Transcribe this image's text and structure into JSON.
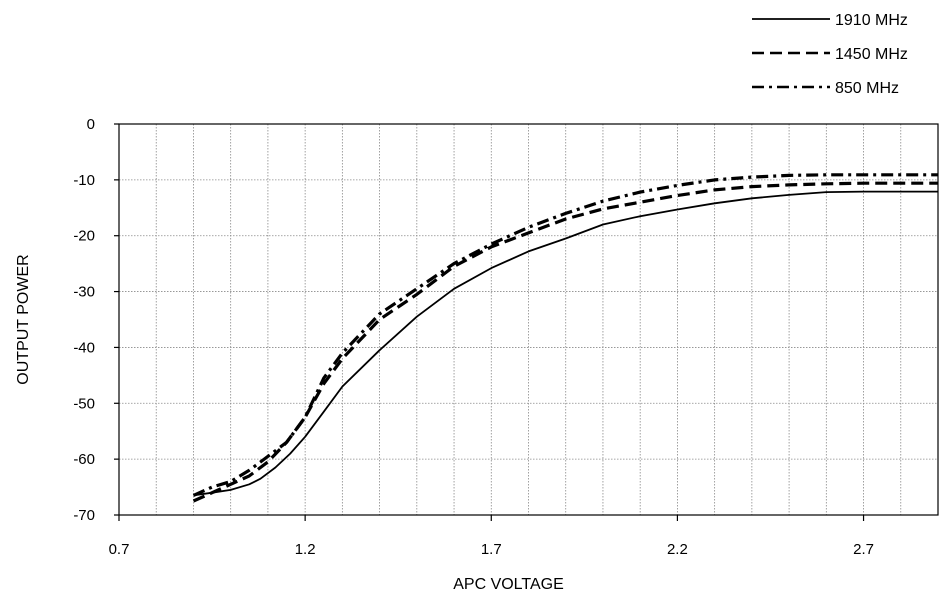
{
  "chart_data": {
    "type": "line",
    "xlabel": "APC VOLTAGE",
    "ylabel": "OUTPUT POWER",
    "xlim": [
      0.7,
      2.9
    ],
    "ylim": [
      -70,
      0
    ],
    "x_ticks": [
      0.7,
      1.2,
      1.7,
      2.2,
      2.7
    ],
    "x_tick_labels": [
      "0.7",
      "1.2",
      "1.7",
      "2.2",
      "2.7"
    ],
    "y_ticks": [
      0,
      -10,
      -20,
      -30,
      -40,
      -50,
      -60,
      -70
    ],
    "y_tick_labels": [
      "0",
      "-10",
      "-20",
      "-30",
      "-40",
      "-50",
      "-60",
      "-70"
    ],
    "grid": true,
    "legend_position": "top-right",
    "series": [
      {
        "name": "1910 MHz",
        "style": "solid",
        "x": [
          0.9,
          0.95,
          1.0,
          1.05,
          1.08,
          1.12,
          1.16,
          1.2,
          1.25,
          1.3,
          1.4,
          1.5,
          1.6,
          1.7,
          1.8,
          1.9,
          2.0,
          2.1,
          2.2,
          2.3,
          2.4,
          2.5,
          2.6,
          2.7,
          2.8,
          2.9
        ],
        "y": [
          -66.5,
          -66,
          -65.5,
          -64.5,
          -63.5,
          -61.5,
          -59,
          -56,
          -51.5,
          -47,
          -40.5,
          -34.5,
          -29.5,
          -25.8,
          -22.8,
          -20.5,
          -18.0,
          -16.5,
          -15.3,
          -14.2,
          -13.3,
          -12.7,
          -12.2,
          -12.1,
          -12.1,
          -12.1
        ]
      },
      {
        "name": "1450 MHz",
        "style": "dashed",
        "x": [
          0.9,
          0.95,
          1.0,
          1.05,
          1.1,
          1.15,
          1.2,
          1.25,
          1.3,
          1.4,
          1.5,
          1.6,
          1.7,
          1.8,
          1.9,
          2.0,
          2.1,
          2.2,
          2.3,
          2.4,
          2.5,
          2.6,
          2.7,
          2.8,
          2.9
        ],
        "y": [
          -67.5,
          -66,
          -64.5,
          -63,
          -60.5,
          -57,
          -52.5,
          -46.5,
          -42,
          -35,
          -30.5,
          -25.5,
          -22,
          -19.5,
          -17,
          -15.2,
          -14,
          -12.8,
          -11.8,
          -11.2,
          -10.9,
          -10.7,
          -10.6,
          -10.6,
          -10.6
        ]
      },
      {
        "name": "850 MHz",
        "style": "dash-dot",
        "x": [
          0.9,
          0.95,
          1.0,
          1.05,
          1.1,
          1.15,
          1.2,
          1.25,
          1.3,
          1.4,
          1.5,
          1.6,
          1.7,
          1.8,
          1.9,
          2.0,
          2.1,
          2.2,
          2.3,
          2.4,
          2.5,
          2.6,
          2.7,
          2.8,
          2.9
        ],
        "y": [
          -66.5,
          -65,
          -64,
          -62,
          -59.5,
          -57,
          -52.5,
          -45.5,
          -41,
          -34,
          -29.5,
          -25,
          -21.5,
          -18.5,
          -16,
          -13.8,
          -12.2,
          -11,
          -10,
          -9.5,
          -9.2,
          -9.1,
          -9.1,
          -9.1,
          -9.1
        ]
      }
    ]
  }
}
